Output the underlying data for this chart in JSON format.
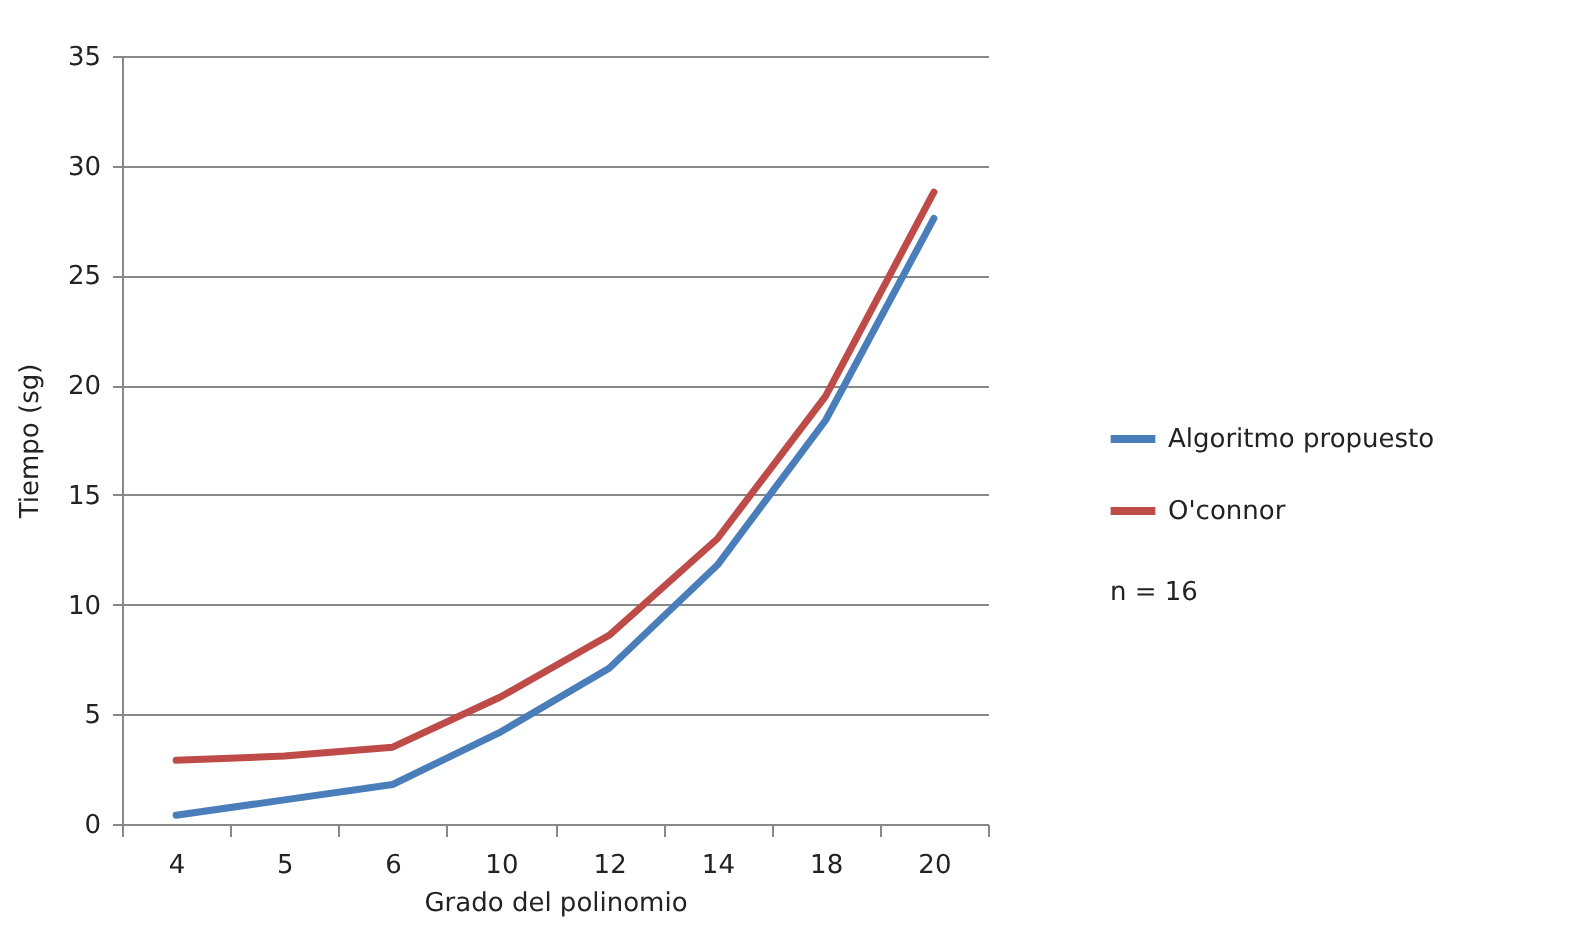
{
  "chart_data": {
    "type": "line",
    "xlabel": "Grado del polinomio",
    "ylabel": "Tiempo (sg)",
    "categories": [
      "4",
      "5",
      "6",
      "10",
      "12",
      "14",
      "18",
      "20"
    ],
    "series": [
      {
        "name": "Algoritmo propuesto",
        "color": "#4a7ebb",
        "values": [
          0.4,
          1.1,
          1.8,
          4.2,
          7.1,
          11.8,
          18.4,
          27.6
        ]
      },
      {
        "name": "O'connor",
        "color": "#be4b48",
        "values": [
          2.9,
          3.1,
          3.5,
          5.8,
          8.6,
          13.0,
          19.5,
          28.8
        ]
      }
    ],
    "ylim": [
      0,
      35
    ],
    "yticks": [
      0,
      5,
      10,
      15,
      20,
      25,
      30,
      35
    ],
    "grid": "y",
    "legend": "right",
    "marker": "none",
    "line_style": "solid",
    "annotations": [
      "n = 16"
    ]
  }
}
